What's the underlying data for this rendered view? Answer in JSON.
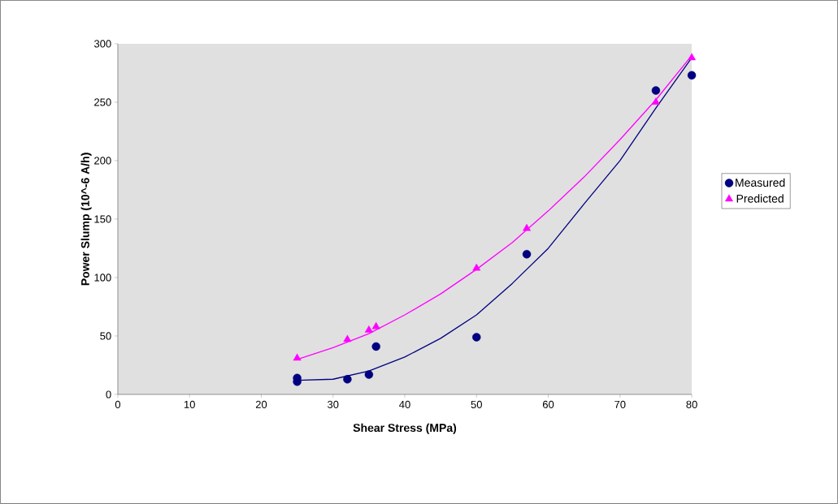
{
  "chart_data": {
    "type": "scatter",
    "xlabel": "Shear Stress (MPa)",
    "ylabel": "Power Slump (10^-6 A/h)",
    "xlim": [
      0,
      80
    ],
    "ylim": [
      0,
      300
    ],
    "xticks": [
      0,
      10,
      20,
      30,
      40,
      50,
      60,
      70,
      80
    ],
    "yticks": [
      0,
      50,
      100,
      150,
      200,
      250,
      300
    ],
    "grid": false,
    "legend": "right",
    "series": [
      {
        "name": "Measured",
        "marker": "circle",
        "color": "#000080",
        "x": [
          25,
          25,
          32,
          35,
          36,
          50,
          57,
          75,
          80
        ],
        "values": [
          14,
          11,
          13,
          17,
          41,
          49,
          120,
          260,
          273
        ]
      },
      {
        "name": "Predicted",
        "marker": "triangle",
        "color": "#ff00ff",
        "x": [
          25,
          32,
          35,
          36,
          50,
          57,
          75,
          80
        ],
        "values": [
          31,
          47,
          55,
          58,
          108,
          142,
          250,
          288
        ]
      },
      {
        "type": "line",
        "marker": "none",
        "color": "#000080",
        "x": [
          25,
          30,
          35,
          40,
          45,
          50,
          55,
          60,
          65,
          70,
          75,
          80
        ],
        "values": [
          12,
          13,
          20,
          32,
          48,
          68,
          95,
          125,
          163,
          200,
          245,
          288
        ]
      },
      {
        "type": "line",
        "marker": "none",
        "color": "#ff00ff",
        "x": [
          25,
          30,
          35,
          40,
          45,
          50,
          55,
          60,
          65,
          70,
          75,
          80
        ],
        "values": [
          30,
          40,
          52,
          68,
          86,
          107,
          130,
          157,
          186,
          218,
          252,
          290
        ]
      }
    ]
  }
}
